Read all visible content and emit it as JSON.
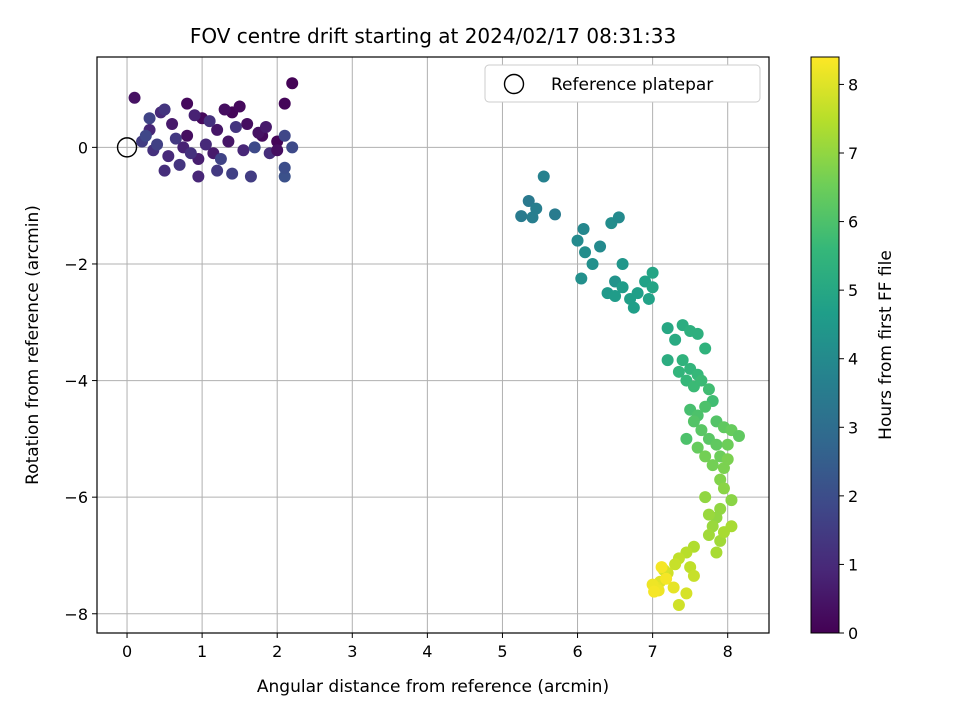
{
  "chart_data": {
    "type": "scatter",
    "title": "FOV centre drift starting at 2024/02/17 08:31:33",
    "xlabel": "Angular distance from reference (arcmin)",
    "ylabel": "Rotation from reference (arcmin)",
    "xlim": [
      -0.4,
      8.55
    ],
    "ylim": [
      -8.33,
      1.55
    ],
    "xticks": [
      0,
      1,
      2,
      3,
      4,
      5,
      6,
      7,
      8
    ],
    "yticks": [
      0,
      -2,
      -4,
      -6,
      -8
    ],
    "grid": true,
    "legend": {
      "placement": "top-right",
      "label": "Reference platepar"
    },
    "reference_point": {
      "x": 0,
      "y": 0
    },
    "colorbar": {
      "label": "Hours from first FF file",
      "range": [
        0,
        8.4
      ],
      "ticks": [
        0,
        1,
        2,
        3,
        4,
        5,
        6,
        7,
        8
      ],
      "colormap": "viridis"
    },
    "colormap_stops": [
      "#440154",
      "#482878",
      "#3e4989",
      "#31688e",
      "#26828e",
      "#1f9e89",
      "#35b779",
      "#6ece58",
      "#b5de2b",
      "#fde725"
    ],
    "points": [
      [
        0.1,
        0.85,
        0.4
      ],
      [
        0.3,
        0.3,
        0.9
      ],
      [
        0.45,
        0.6,
        1.0
      ],
      [
        0.6,
        0.4,
        0.6
      ],
      [
        0.8,
        0.2,
        0.3
      ],
      [
        1.0,
        0.5,
        0.2
      ],
      [
        1.2,
        0.3,
        0.5
      ],
      [
        1.4,
        0.6,
        0.1
      ],
      [
        1.6,
        0.4,
        0.3
      ],
      [
        1.8,
        0.2,
        0.2
      ],
      [
        2.0,
        0.1,
        0.1
      ],
      [
        0.2,
        0.1,
        1.5
      ],
      [
        0.35,
        -0.05,
        1.2
      ],
      [
        0.55,
        -0.15,
        1.0
      ],
      [
        0.75,
        0.0,
        0.8
      ],
      [
        0.95,
        -0.2,
        0.7
      ],
      [
        1.15,
        -0.1,
        0.6
      ],
      [
        1.35,
        0.1,
        0.5
      ],
      [
        1.55,
        -0.05,
        0.9
      ],
      [
        1.75,
        0.25,
        0.4
      ],
      [
        0.5,
        -0.4,
        1.1
      ],
      [
        0.7,
        -0.3,
        1.3
      ],
      [
        0.95,
        -0.5,
        0.9
      ],
      [
        1.2,
        -0.4,
        1.4
      ],
      [
        1.4,
        -0.45,
        1.6
      ],
      [
        1.65,
        -0.5,
        1.5
      ],
      [
        2.1,
        -0.5,
        2.1
      ],
      [
        2.1,
        -0.35,
        2.0
      ],
      [
        2.1,
        0.2,
        1.8
      ],
      [
        2.2,
        0.0,
        1.9
      ],
      [
        0.3,
        0.5,
        1.7
      ],
      [
        0.5,
        0.65,
        1.3
      ],
      [
        0.8,
        0.75,
        0.2
      ],
      [
        0.9,
        0.55,
        0.8
      ],
      [
        1.1,
        0.45,
        1.2
      ],
      [
        1.3,
        0.65,
        0.3
      ],
      [
        1.5,
        0.7,
        0.2
      ],
      [
        1.9,
        -0.1,
        1.1
      ],
      [
        2.2,
        1.1,
        0.05
      ],
      [
        2.1,
        0.75,
        0.1
      ],
      [
        0.25,
        0.2,
        1.8
      ],
      [
        0.4,
        0.05,
        1.6
      ],
      [
        0.65,
        0.15,
        1.4
      ],
      [
        0.85,
        -0.1,
        1.2
      ],
      [
        1.05,
        0.05,
        1.0
      ],
      [
        1.25,
        -0.2,
        1.7
      ],
      [
        1.45,
        0.35,
        1.3
      ],
      [
        1.7,
        0.0,
        1.9
      ],
      [
        1.85,
        0.35,
        0.6
      ],
      [
        2.0,
        -0.05,
        0.3
      ],
      [
        5.25,
        -1.18,
        3.5
      ],
      [
        5.35,
        -0.92,
        3.4
      ],
      [
        5.45,
        -1.05,
        3.6
      ],
      [
        5.55,
        -0.5,
        3.7
      ],
      [
        5.7,
        -1.15,
        3.5
      ],
      [
        5.4,
        -1.2,
        3.6
      ],
      [
        6.0,
        -1.6,
        4.0
      ],
      [
        6.1,
        -1.8,
        4.1
      ],
      [
        6.2,
        -2.0,
        4.2
      ],
      [
        6.3,
        -1.7,
        4.0
      ],
      [
        6.45,
        -1.3,
        4.1
      ],
      [
        6.5,
        -2.3,
        4.3
      ],
      [
        6.55,
        -1.2,
        4.0
      ],
      [
        6.6,
        -2.0,
        4.4
      ],
      [
        6.05,
        -2.25,
        4.2
      ],
      [
        6.08,
        -1.4,
        3.9
      ],
      [
        6.4,
        -2.5,
        4.5
      ],
      [
        6.5,
        -2.55,
        4.6
      ],
      [
        6.6,
        -2.4,
        4.6
      ],
      [
        6.7,
        -2.6,
        4.7
      ],
      [
        6.8,
        -2.5,
        4.7
      ],
      [
        6.9,
        -2.3,
        4.8
      ],
      [
        7.0,
        -2.4,
        4.9
      ],
      [
        7.0,
        -2.15,
        4.9
      ],
      [
        6.75,
        -2.75,
        4.7
      ],
      [
        6.95,
        -2.6,
        4.8
      ],
      [
        7.2,
        -3.1,
        5.0
      ],
      [
        7.3,
        -3.3,
        5.1
      ],
      [
        7.4,
        -3.05,
        5.2
      ],
      [
        7.5,
        -3.15,
        5.3
      ],
      [
        7.6,
        -3.2,
        5.3
      ],
      [
        7.7,
        -3.45,
        5.4
      ],
      [
        7.2,
        -3.65,
        5.2
      ],
      [
        7.4,
        -3.65,
        5.4
      ],
      [
        7.5,
        -3.8,
        5.5
      ],
      [
        7.6,
        -3.9,
        5.6
      ],
      [
        7.35,
        -3.85,
        5.5
      ],
      [
        7.45,
        -4.0,
        5.6
      ],
      [
        7.55,
        -4.1,
        5.7
      ],
      [
        7.65,
        -4.0,
        5.7
      ],
      [
        7.75,
        -4.15,
        5.8
      ],
      [
        7.8,
        -4.35,
        5.8
      ],
      [
        7.5,
        -4.5,
        5.9
      ],
      [
        7.6,
        -4.6,
        6.0
      ],
      [
        7.7,
        -4.45,
        6.0
      ],
      [
        7.85,
        -4.7,
        6.1
      ],
      [
        7.45,
        -5.0,
        6.0
      ],
      [
        7.55,
        -4.7,
        6.1
      ],
      [
        7.65,
        -4.85,
        6.2
      ],
      [
        7.75,
        -5.0,
        6.2
      ],
      [
        7.85,
        -5.1,
        6.3
      ],
      [
        7.95,
        -4.8,
        6.3
      ],
      [
        8.05,
        -4.85,
        6.4
      ],
      [
        8.15,
        -4.95,
        6.3
      ],
      [
        7.9,
        -5.3,
        6.5
      ],
      [
        8.0,
        -5.1,
        6.5
      ],
      [
        7.6,
        -5.15,
        6.4
      ],
      [
        7.7,
        -5.3,
        6.6
      ],
      [
        7.8,
        -5.45,
        6.6
      ],
      [
        7.95,
        -5.5,
        6.7
      ],
      [
        8.0,
        -5.35,
        6.7
      ],
      [
        7.9,
        -5.7,
        6.8
      ],
      [
        7.95,
        -5.85,
        6.9
      ],
      [
        8.05,
        -6.05,
        6.9
      ],
      [
        7.9,
        -6.2,
        7.0
      ],
      [
        7.85,
        -6.35,
        7.0
      ],
      [
        7.8,
        -6.5,
        7.1
      ],
      [
        7.75,
        -6.65,
        7.2
      ],
      [
        7.9,
        -6.75,
        7.2
      ],
      [
        7.85,
        -6.95,
        7.3
      ],
      [
        7.95,
        -6.6,
        7.3
      ],
      [
        8.05,
        -6.5,
        7.3
      ],
      [
        7.7,
        -6.0,
        7.0
      ],
      [
        7.75,
        -6.3,
        7.1
      ],
      [
        7.55,
        -6.85,
        7.4
      ],
      [
        7.45,
        -6.95,
        7.5
      ],
      [
        7.35,
        -7.05,
        7.6
      ],
      [
        7.5,
        -7.2,
        7.6
      ],
      [
        7.55,
        -7.35,
        7.7
      ],
      [
        7.3,
        -7.15,
        7.7
      ],
      [
        7.2,
        -7.3,
        7.8
      ],
      [
        7.15,
        -7.25,
        7.9
      ],
      [
        7.1,
        -7.45,
        8.0
      ],
      [
        7.05,
        -7.55,
        8.1
      ],
      [
        7.0,
        -7.5,
        8.2
      ],
      [
        7.08,
        -7.6,
        8.2
      ],
      [
        7.12,
        -7.2,
        8.3
      ],
      [
        7.18,
        -7.4,
        8.3
      ],
      [
        7.35,
        -7.85,
        7.8
      ],
      [
        7.45,
        -7.65,
        7.9
      ],
      [
        7.28,
        -7.55,
        8.1
      ],
      [
        7.02,
        -7.62,
        8.3
      ]
    ]
  }
}
